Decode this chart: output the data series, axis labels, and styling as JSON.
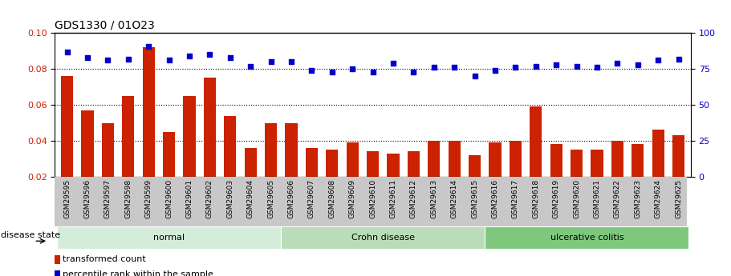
{
  "title": "GDS1330 / 01O23",
  "categories": [
    "GSM29595",
    "GSM29596",
    "GSM29597",
    "GSM29598",
    "GSM29599",
    "GSM29600",
    "GSM29601",
    "GSM29602",
    "GSM29603",
    "GSM29604",
    "GSM29605",
    "GSM29606",
    "GSM29607",
    "GSM29608",
    "GSM29609",
    "GSM29610",
    "GSM29611",
    "GSM29612",
    "GSM29613",
    "GSM29614",
    "GSM29615",
    "GSM29616",
    "GSM29617",
    "GSM29618",
    "GSM29619",
    "GSM29620",
    "GSM29621",
    "GSM29622",
    "GSM29623",
    "GSM29624",
    "GSM29625"
  ],
  "bar_values": [
    0.076,
    0.057,
    0.05,
    0.065,
    0.092,
    0.045,
    0.065,
    0.075,
    0.054,
    0.036,
    0.05,
    0.05,
    0.036,
    0.035,
    0.039,
    0.034,
    0.033,
    0.034,
    0.04,
    0.04,
    0.032,
    0.039,
    0.04,
    0.059,
    0.038,
    0.035,
    0.035,
    0.04,
    0.038,
    0.046,
    0.043
  ],
  "dot_values": [
    87,
    83,
    81,
    82,
    91,
    81,
    84,
    85,
    83,
    77,
    80,
    80,
    74,
    73,
    75,
    73,
    79,
    73,
    76,
    76,
    70,
    74,
    76,
    77,
    78,
    77,
    76,
    79,
    78,
    81,
    82
  ],
  "groups": [
    {
      "label": "normal",
      "start": 0,
      "end": 11,
      "color": "#d4edda"
    },
    {
      "label": "Crohn disease",
      "start": 11,
      "end": 21,
      "color": "#b8ddb8"
    },
    {
      "label": "ulcerative colitis",
      "start": 21,
      "end": 31,
      "color": "#7ec87e"
    }
  ],
  "ylim_left": [
    0.02,
    0.1
  ],
  "ylim_right": [
    0,
    100
  ],
  "yticks_left": [
    0.02,
    0.04,
    0.06,
    0.08,
    0.1
  ],
  "yticks_right": [
    0,
    25,
    50,
    75,
    100
  ],
  "bar_color": "#cc2200",
  "dot_color": "#0000cc",
  "background_color": "#ffffff",
  "legend_items": [
    "transformed count",
    "percentile rank within the sample"
  ],
  "disease_state_label": "disease state"
}
